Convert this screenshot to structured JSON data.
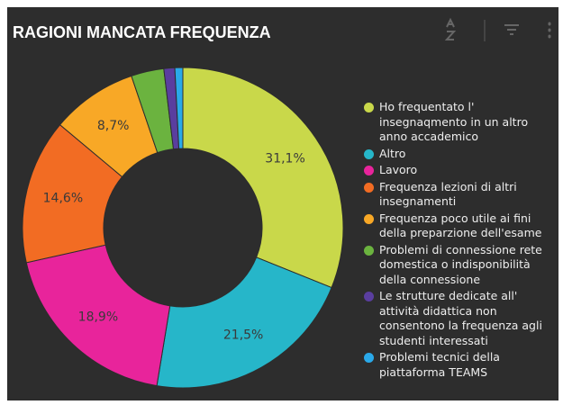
{
  "chart_data": {
    "type": "donut",
    "title": "RAGIONI MANCATA FREQUENZA",
    "categories": [
      "Ho frequentato l' insegnaqmento in un altro anno accademico",
      "Altro",
      "Lavoro",
      "Frequenza lezioni di altri insegnamenti",
      "Frequenza poco utile ai fini della preparzione dell'esame",
      "Problemi di connessione rete domestica o indisponibilità della connessione",
      "Le strutture dedicate all' attività didattica non consentono la frequenza agli studenti interessati",
      "Problemi tecnici della piattaforma TEAMS"
    ],
    "values": [
      31.1,
      21.5,
      18.9,
      14.6,
      8.7,
      3.3,
      1.1,
      0.8
    ],
    "value_labels": [
      "31,1%",
      "21,5%",
      "18,9%",
      "14,6%",
      "8,7%",
      null,
      null,
      null
    ],
    "colors": [
      "#c9d84a",
      "#26b6c9",
      "#e8249b",
      "#f26c23",
      "#f8a826",
      "#6bb33f",
      "#5a3e9f",
      "#2aa9e9"
    ],
    "legend": "right"
  }
}
